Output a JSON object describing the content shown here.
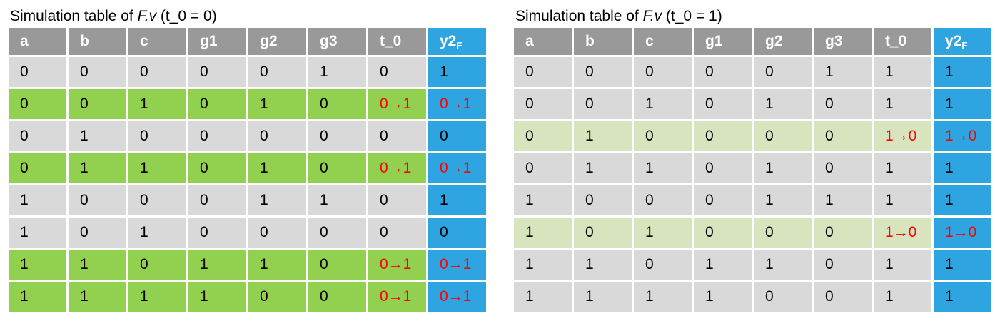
{
  "left": {
    "title_prefix": "Simulation table of ",
    "title_italic": "F.v",
    "title_suffix": " (t_0 = 0)",
    "header": [
      "a",
      "b",
      "c",
      "g1",
      "g2",
      "g3",
      "t_0"
    ],
    "out_header_main": "y2",
    "out_header_sub": "F",
    "rows": [
      {
        "cells": [
          "0",
          "0",
          "0",
          "0",
          "0",
          "1",
          "0"
        ],
        "out": "1",
        "highlight": false
      },
      {
        "cells": [
          "0",
          "0",
          "1",
          "0",
          "1",
          "0",
          "0→1"
        ],
        "out": "0→1",
        "highlight": true
      },
      {
        "cells": [
          "0",
          "1",
          "0",
          "0",
          "0",
          "0",
          "0"
        ],
        "out": "0",
        "highlight": false
      },
      {
        "cells": [
          "0",
          "1",
          "1",
          "0",
          "1",
          "0",
          "0→1"
        ],
        "out": "0→1",
        "highlight": true
      },
      {
        "cells": [
          "1",
          "0",
          "0",
          "0",
          "1",
          "1",
          "0"
        ],
        "out": "1",
        "highlight": false
      },
      {
        "cells": [
          "1",
          "0",
          "1",
          "0",
          "0",
          "0",
          "0"
        ],
        "out": "0",
        "highlight": false
      },
      {
        "cells": [
          "1",
          "1",
          "0",
          "1",
          "1",
          "0",
          "0→1"
        ],
        "out": "0→1",
        "highlight": true
      },
      {
        "cells": [
          "1",
          "1",
          "1",
          "1",
          "0",
          "0",
          "0→1"
        ],
        "out": "0→1",
        "highlight": true
      }
    ]
  },
  "right": {
    "title_prefix": "Simulation table of ",
    "title_italic": "F.v",
    "title_suffix": " (t_0 = 1)",
    "header": [
      "a",
      "b",
      "c",
      "g1",
      "g2",
      "g3",
      "t_0"
    ],
    "out_header_main": "y2",
    "out_header_sub": "F",
    "rows": [
      {
        "cells": [
          "0",
          "0",
          "0",
          "0",
          "0",
          "1",
          "1"
        ],
        "out": "1",
        "highlight": false
      },
      {
        "cells": [
          "0",
          "0",
          "1",
          "0",
          "1",
          "0",
          "1"
        ],
        "out": "1",
        "highlight": false
      },
      {
        "cells": [
          "0",
          "1",
          "0",
          "0",
          "0",
          "0",
          "1→0"
        ],
        "out": "1→0",
        "highlight": true
      },
      {
        "cells": [
          "0",
          "1",
          "1",
          "0",
          "1",
          "0",
          "1"
        ],
        "out": "1",
        "highlight": false
      },
      {
        "cells": [
          "1",
          "0",
          "0",
          "0",
          "1",
          "1",
          "1"
        ],
        "out": "1",
        "highlight": false
      },
      {
        "cells": [
          "1",
          "0",
          "1",
          "0",
          "0",
          "0",
          "1→0"
        ],
        "out": "1→0",
        "highlight": true
      },
      {
        "cells": [
          "1",
          "1",
          "0",
          "1",
          "1",
          "0",
          "1"
        ],
        "out": "1",
        "highlight": false
      },
      {
        "cells": [
          "1",
          "1",
          "1",
          "1",
          "0",
          "0",
          "1"
        ],
        "out": "1",
        "highlight": false
      }
    ]
  },
  "colors": {
    "header_gray": "#999999",
    "output_blue": "#2ea5e0",
    "row_gray": "#d9d9d9",
    "left_highlight_green": "#92d050",
    "right_highlight_light_green": "#d7e4bd",
    "transition_red": "#ff0000"
  }
}
